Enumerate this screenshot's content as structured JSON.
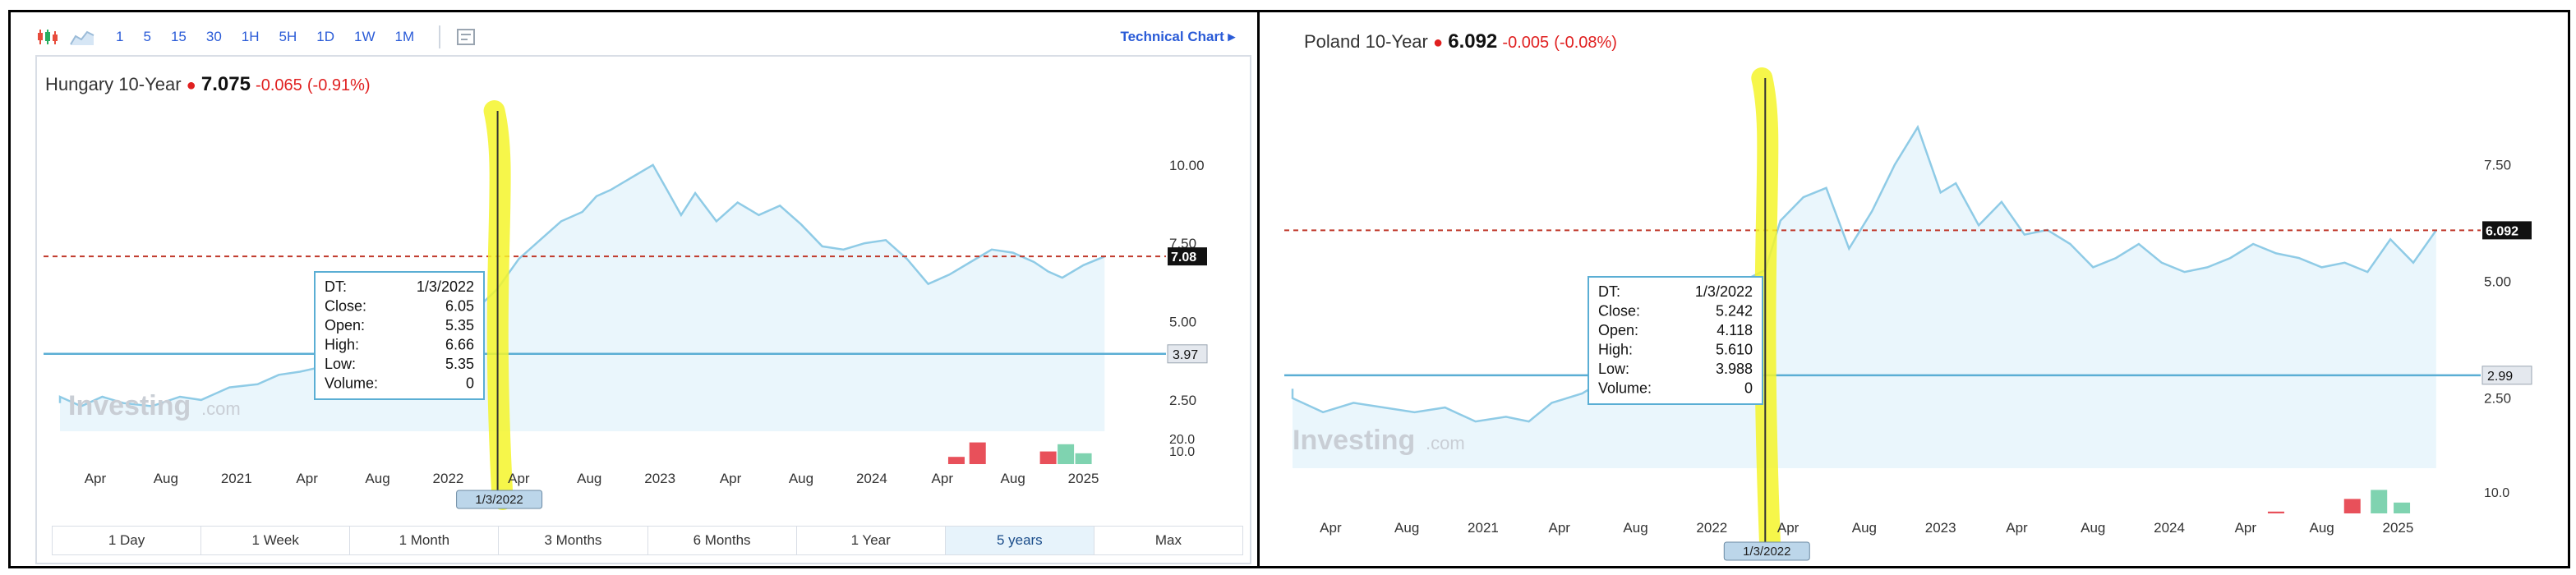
{
  "toolbar": {
    "intervals": [
      "1",
      "5",
      "15",
      "30",
      "1H",
      "5H",
      "1D",
      "1W",
      "1M"
    ],
    "technical_chart": "Technical Chart"
  },
  "ranges": {
    "items": [
      "1 Day",
      "1 Week",
      "1 Month",
      "3 Months",
      "6 Months",
      "1 Year",
      "5 years",
      "Max"
    ],
    "active": "5 years"
  },
  "colors": {
    "line": "#8fcbe6",
    "fill": "#eaf6fc",
    "crosshair": "#5aaed4",
    "dashed": "#c0392b",
    "negative": "#e02020",
    "vol_red": "#e8505a",
    "vol_green": "#7fd3b0",
    "highlight": "#f5f52a"
  },
  "chart_data": [
    {
      "type": "line",
      "title": "Hungary 10-Year",
      "price": "7.075",
      "change": "-0.065",
      "change_pct": "(-0.91%)",
      "watermark": "Investing",
      "watermark_suffix": ".com",
      "x_ticks": [
        "Apr",
        "Aug",
        "2021",
        "Apr",
        "Aug",
        "2022",
        "Apr",
        "Aug",
        "2023",
        "Apr",
        "Aug",
        "2024",
        "Apr",
        "Aug",
        "2025"
      ],
      "y_ticks": [
        10.0,
        7.5,
        5.0,
        2.5
      ],
      "y_tick_labels": [
        "10.00",
        "7.50",
        "5.00",
        "2.50"
      ],
      "volume_ticks": [
        "20.0",
        "10.0"
      ],
      "ylim": [
        1.5,
        11.2
      ],
      "x_range": [
        0,
        15.25
      ],
      "current_label": "7.08",
      "current_value": 7.08,
      "crosshair_value": 3.97,
      "crosshair_label": "3.97",
      "crosshair_x": 6.2,
      "crosshair_date": "1/3/2022",
      "tooltip": {
        "rows": [
          [
            "DT:",
            "1/3/2022"
          ],
          [
            "Close:",
            "6.05"
          ],
          [
            "Open:",
            "5.35"
          ],
          [
            "High:",
            "6.66"
          ],
          [
            "Low:",
            "5.35"
          ],
          [
            "Volume:",
            "0"
          ]
        ]
      },
      "series": [
        {
          "x": [
            -0.2,
            0.0,
            0.3,
            0.6,
            0.9,
            1.3,
            1.7,
            2.0,
            2.4,
            2.8,
            3.1,
            3.4,
            3.8,
            4.1,
            4.4,
            4.7,
            5.0,
            5.3,
            5.6,
            5.9,
            6.2,
            6.5,
            6.8,
            7.1,
            7.4,
            7.6,
            7.8,
            8.1,
            8.4,
            8.6,
            8.8,
            9.0,
            9.3,
            9.6,
            9.9,
            10.2,
            10.5,
            10.8,
            11.1,
            11.4,
            11.7,
            12.0,
            12.3,
            12.6,
            12.9,
            13.2,
            13.5,
            13.8,
            14.0,
            14.2,
            14.5,
            14.8
          ],
          "values": [
            2.4,
            2.6,
            2.3,
            2.6,
            2.4,
            2.3,
            2.6,
            2.5,
            2.9,
            3.0,
            3.3,
            3.4,
            3.6,
            3.7,
            3.9,
            4.0,
            4.3,
            4.6,
            5.0,
            5.4,
            6.05,
            7.0,
            7.6,
            8.2,
            8.5,
            9.0,
            9.2,
            9.6,
            10.0,
            9.2,
            8.4,
            9.1,
            8.2,
            8.8,
            8.4,
            8.7,
            8.1,
            7.4,
            7.3,
            7.5,
            7.6,
            7.0,
            6.2,
            6.5,
            6.9,
            7.3,
            7.2,
            6.9,
            6.6,
            6.4,
            6.8,
            7.08
          ]
        }
      ],
      "volume": [
        {
          "x": 12.7,
          "value": 4,
          "color": "red"
        },
        {
          "x": 13.0,
          "value": 12,
          "color": "red"
        },
        {
          "x": 14.0,
          "value": 7,
          "color": "red"
        },
        {
          "x": 14.25,
          "value": 11,
          "color": "green"
        },
        {
          "x": 14.5,
          "value": 6,
          "color": "green"
        }
      ]
    },
    {
      "type": "line",
      "title": "Poland 10-Year",
      "price": "6.092",
      "change": "-0.005",
      "change_pct": "(-0.08%)",
      "watermark": "Investing",
      "watermark_suffix": ".com",
      "x_ticks": [
        "Apr",
        "Aug",
        "2021",
        "Apr",
        "Aug",
        "2022",
        "Apr",
        "Aug",
        "2023",
        "Apr",
        "Aug",
        "2024",
        "Apr",
        "Aug",
        "2025"
      ],
      "y_ticks": [
        7.5,
        5.0,
        2.5
      ],
      "y_tick_labels": [
        "7.50",
        "5.00",
        "2.50"
      ],
      "volume_ticks": [
        "10.0"
      ],
      "ylim": [
        1.0,
        9.0
      ],
      "x_range": [
        0,
        15.25
      ],
      "current_label": "6.092",
      "current_value": 6.092,
      "crosshair_value": 2.99,
      "crosshair_label": "2.99",
      "crosshair_x": 6.2,
      "crosshair_date": "1/3/2022",
      "tooltip": {
        "rows": [
          [
            "DT:",
            "1/3/2022"
          ],
          [
            "Close:",
            "5.242"
          ],
          [
            "Open:",
            "4.118"
          ],
          [
            "High:",
            "5.610"
          ],
          [
            "Low:",
            "3.988"
          ],
          [
            "Volume:",
            "0"
          ]
        ]
      },
      "series": [
        {
          "x": [
            -0.4,
            0.0,
            0.4,
            0.8,
            1.2,
            1.6,
            2.0,
            2.4,
            2.8,
            3.1,
            3.4,
            3.8,
            4.1,
            4.4,
            4.7,
            5.0,
            5.3,
            5.6,
            5.9,
            6.2,
            6.4,
            6.7,
            7.0,
            7.3,
            7.6,
            7.9,
            8.2,
            8.5,
            8.7,
            9.0,
            9.3,
            9.6,
            9.9,
            10.2,
            10.5,
            10.8,
            11.1,
            11.4,
            11.7,
            12.0,
            12.3,
            12.6,
            12.9,
            13.2,
            13.5,
            13.8,
            14.1,
            14.4,
            14.7,
            15.0
          ],
          "values": [
            2.7,
            2.5,
            2.2,
            2.4,
            2.3,
            2.2,
            2.3,
            2.0,
            2.1,
            2.0,
            2.4,
            2.6,
            2.9,
            3.5,
            3.7,
            4.0,
            4.3,
            4.6,
            5.0,
            5.242,
            6.3,
            6.8,
            7.0,
            5.7,
            6.5,
            7.5,
            8.3,
            6.9,
            7.1,
            6.2,
            6.7,
            6.0,
            6.1,
            5.8,
            5.3,
            5.5,
            5.8,
            5.4,
            5.2,
            5.3,
            5.5,
            5.8,
            5.6,
            5.5,
            5.3,
            5.4,
            5.2,
            5.9,
            5.4,
            6.092
          ]
        }
      ],
      "volume": [
        {
          "x": 12.9,
          "value": 1,
          "color": "red"
        },
        {
          "x": 13.9,
          "value": 8,
          "color": "red"
        },
        {
          "x": 14.25,
          "value": 13,
          "color": "green"
        },
        {
          "x": 14.55,
          "value": 6,
          "color": "green"
        }
      ]
    }
  ]
}
